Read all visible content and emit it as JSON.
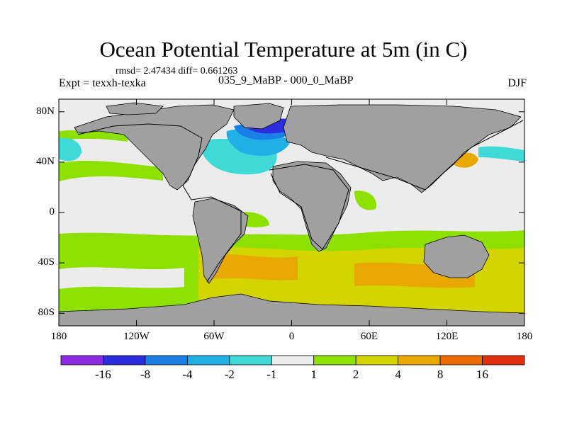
{
  "title": "Ocean Potential Temperature at 5m (in C)",
  "stats": "rmsd= 2.47434 diff= 0.661263",
  "experiment": "Expt = texxh-texka",
  "subtitle": "035_9_MaBP - 000_0_MaBP",
  "season": "DJF",
  "lat_ticks": [
    {
      "value": 80,
      "label": "80N"
    },
    {
      "value": 40,
      "label": "40N"
    },
    {
      "value": 0,
      "label": "0"
    },
    {
      "value": -40,
      "label": "40S"
    },
    {
      "value": -80,
      "label": "80S"
    }
  ],
  "lon_ticks": [
    {
      "value": -180,
      "label": "180"
    },
    {
      "value": -120,
      "label": "120W"
    },
    {
      "value": -60,
      "label": "60W"
    },
    {
      "value": 0,
      "label": "0"
    },
    {
      "value": 60,
      "label": "60E"
    },
    {
      "value": 120,
      "label": "120E"
    },
    {
      "value": 180,
      "label": "180"
    }
  ],
  "colorbar": {
    "colors": [
      "#8a2be2",
      "#2c2ce0",
      "#1a7fe6",
      "#1fb0e6",
      "#3fdad8",
      "#ececec",
      "#8ee000",
      "#d4d400",
      "#e8a800",
      "#e86a00",
      "#e03010"
    ],
    "labels": [
      "-16",
      "-8",
      "-4",
      "-2",
      "-1",
      "1",
      "2",
      "4",
      "8",
      "16"
    ]
  },
  "palette": {
    "neutral": "#ececec",
    "land": "#a0a0a0"
  }
}
